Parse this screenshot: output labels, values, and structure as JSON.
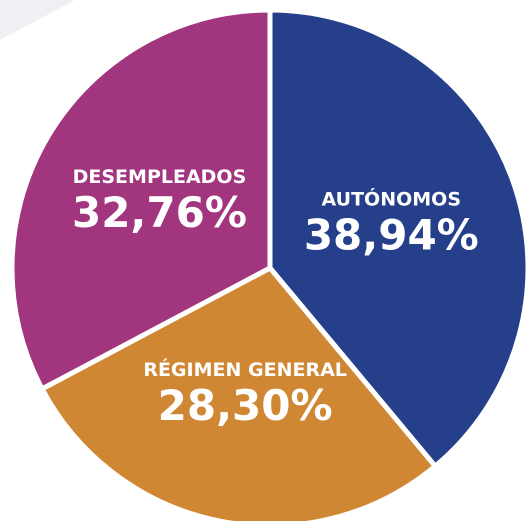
{
  "chart_data": {
    "type": "pie",
    "categories": [
      "AUTÓNOMOS",
      "RÉGIMEN GENERAL",
      "DESEMPLEADOS"
    ],
    "values": [
      38.94,
      28.3,
      32.76
    ],
    "value_labels": [
      "38,94%",
      "28,30%",
      "32,76%"
    ],
    "colors": [
      "#253f8a",
      "#d08733",
      "#a1357e"
    ]
  }
}
